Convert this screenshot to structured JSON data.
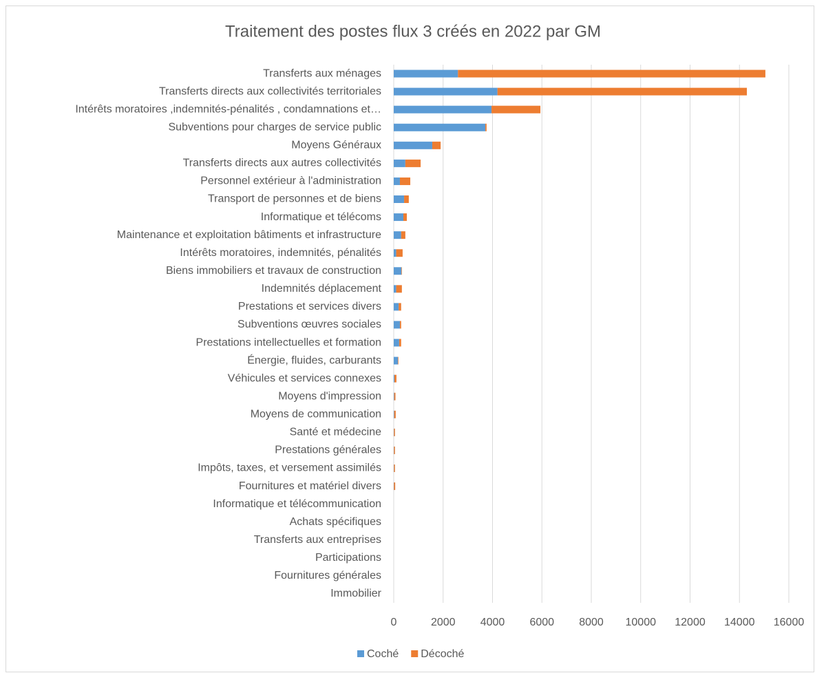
{
  "chart_data": {
    "type": "stacked_bar_horizontal",
    "title": "Traitement des postes flux 3 créés en 2022 par GM",
    "categories": [
      "Transferts aux ménages",
      "Transferts directs aux collectivités territoriales",
      "Intérêts moratoires ,indemnités-pénalités , condamnations et…",
      "Subventions pour charges de service public",
      "Moyens Généraux",
      "Transferts directs aux autres collectivités",
      "Personnel extérieur à l'administration",
      "Transport de personnes et de biens",
      "Informatique et télécoms",
      "Maintenance et exploitation bâtiments et infrastructure",
      "Intérêts moratoires, indemnités, pénalités",
      "Biens immobiliers et travaux de construction",
      "Indemnités déplacement",
      "Prestations et services divers",
      "Subventions œuvres sociales",
      "Prestations intellectuelles et formation",
      "Énergie, fluides, carburants",
      "Véhicules et services connexes",
      "Moyens d'impression",
      "Moyens de communication",
      "Santé et médecine",
      "Prestations générales",
      "Impôts, taxes,  et   versement assimilés",
      "Fournitures et matériel divers",
      "Informatique et télécommunication",
      "Achats spécifiques",
      "Transferts  aux entreprises",
      "Participations",
      "Fournitures générales",
      "Immobilier"
    ],
    "series": [
      {
        "name": "Coché",
        "color": "#5b9bd5",
        "values": [
          2600,
          4200,
          3960,
          3710,
          1560,
          470,
          250,
          420,
          390,
          300,
          100,
          310,
          100,
          200,
          250,
          220,
          170,
          30,
          20,
          20,
          10,
          10,
          10,
          10,
          0,
          0,
          0,
          0,
          0,
          0
        ]
      },
      {
        "name": "Décoché",
        "color": "#ed7d31",
        "values": [
          12450,
          10100,
          1980,
          50,
          340,
          620,
          420,
          190,
          140,
          170,
          260,
          20,
          230,
          100,
          50,
          80,
          20,
          80,
          50,
          60,
          40,
          40,
          40,
          50,
          0,
          0,
          0,
          0,
          0,
          0
        ]
      }
    ],
    "xlim": [
      0,
      16000
    ],
    "xticks": [
      0,
      2000,
      4000,
      6000,
      8000,
      10000,
      12000,
      14000,
      16000
    ],
    "grid": true,
    "legend": "bottom"
  }
}
